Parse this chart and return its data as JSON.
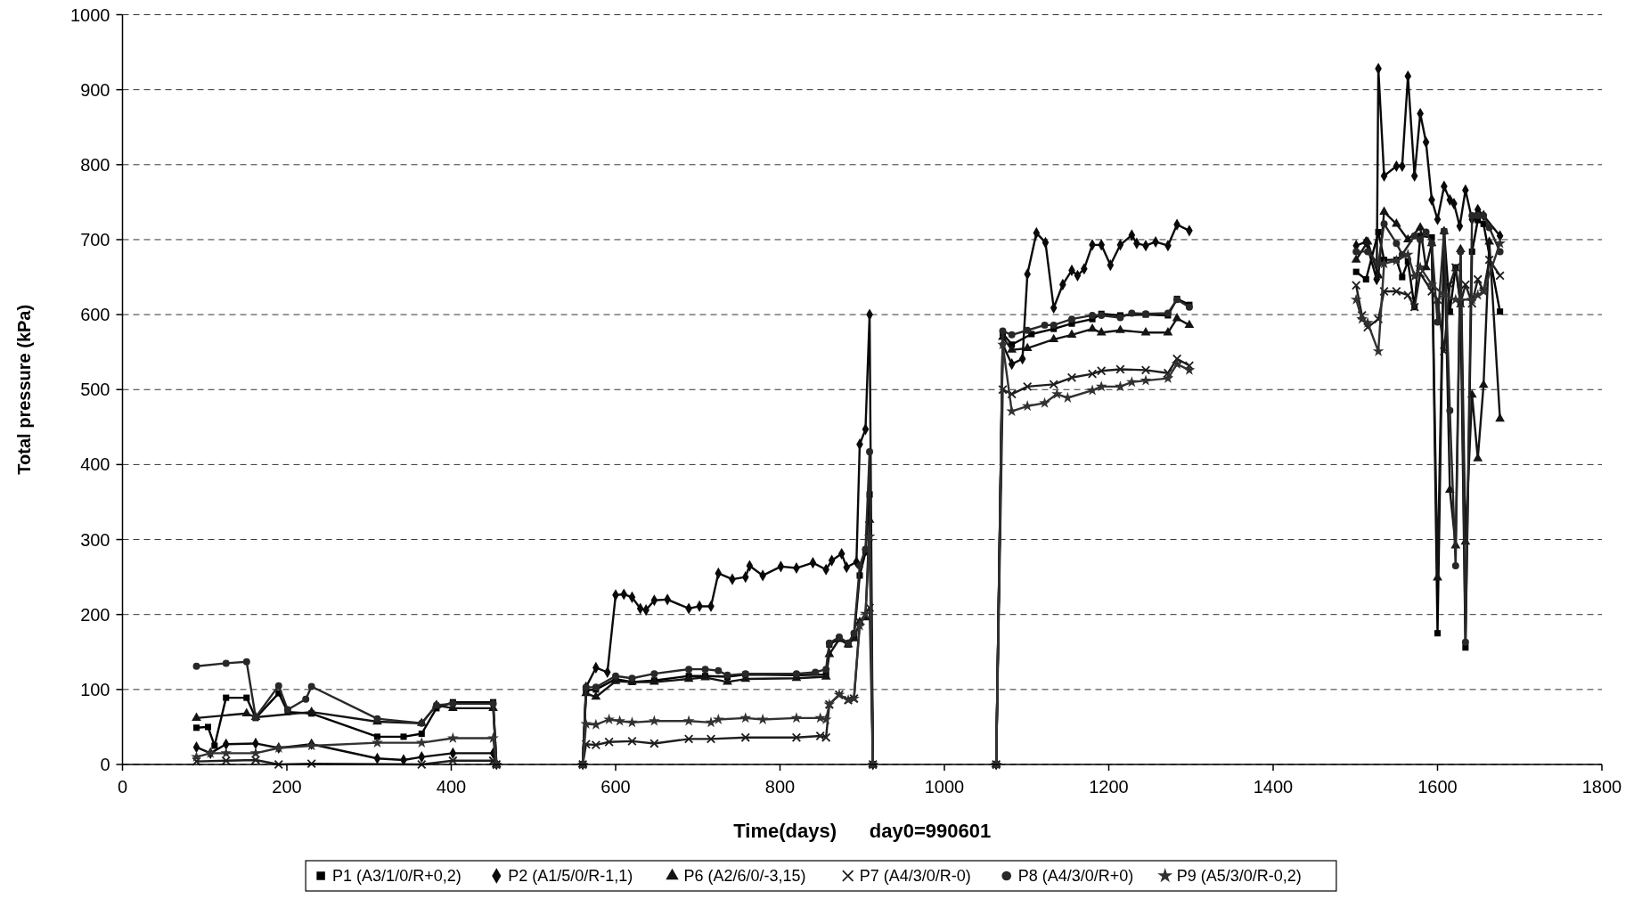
{
  "chart_data": {
    "type": "line",
    "xlabel": "Time(days)      day0=990601",
    "ylabel": "Total pressure (kPa)",
    "xlim": [
      0,
      1800
    ],
    "xticks": [
      0,
      200,
      400,
      600,
      800,
      1000,
      1200,
      1400,
      1600,
      1800
    ],
    "ylim": [
      0,
      1000
    ],
    "yticks": [
      0,
      100,
      200,
      300,
      400,
      500,
      600,
      700,
      800,
      900,
      1000
    ],
    "grid": "y",
    "legend": "bottom",
    "series": [
      {
        "name": "P1 (A3/1/0/R+0,2)",
        "color": "#000000",
        "marker": "square",
        "x": [
          90,
          104,
          112,
          126,
          151,
          162,
          190,
          201,
          230,
          310,
          342,
          364,
          382,
          402,
          451,
          455,
          500,
          560,
          564,
          576,
          600,
          620,
          647,
          689,
          709,
          736,
          758,
          820,
          856,
          860,
          872,
          883,
          890,
          897,
          904,
          909,
          913,
          990,
          1063,
          1071,
          1082,
          1106,
          1133,
          1155,
          1180,
          1191,
          1214,
          1245,
          1272,
          1283,
          1298,
          1400,
          1501,
          1513,
          1528,
          1535,
          1550,
          1557,
          1564,
          1572,
          1579,
          1593,
          1600,
          1608,
          1615,
          1622,
          1628,
          1634,
          1642,
          1649,
          1656,
          1676
        ],
        "values": [
          49,
          50,
          25,
          89,
          89,
          62,
          95,
          70,
          68,
          37,
          37,
          41,
          75,
          83,
          83,
          0,
          null,
          0,
          99,
          100,
          114,
          110,
          112,
          118,
          118,
          117,
          120,
          119,
          120,
          160,
          168,
          160,
          170,
          252,
          283,
          360,
          0,
          null,
          0,
          575,
          560,
          574,
          581,
          588,
          594,
          601,
          599,
          600,
          599,
          621,
          613,
          null,
          657,
          647,
          710,
          673,
          673,
          650,
          671,
          610,
          705,
          703,
          175,
          711,
          604,
          663,
          615,
          156,
          684,
          726,
          721,
          604
        ]
      },
      {
        "name": "P2 (A1/5/0/R-1,1)",
        "color": "#0a0a0a",
        "marker": "diamond",
        "x": [
          90,
          107,
          126,
          162,
          190,
          230,
          310,
          342,
          364,
          402,
          451,
          455,
          500,
          560,
          564,
          576,
          590,
          600,
          610,
          620,
          630,
          637,
          647,
          663,
          689,
          702,
          716,
          725,
          742,
          758,
          763,
          779,
          801,
          820,
          840,
          856,
          863,
          875,
          881,
          893,
          897,
          904,
          909,
          913,
          990,
          1063,
          1071,
          1082,
          1095,
          1101,
          1112,
          1123,
          1133,
          1144,
          1155,
          1162,
          1170,
          1180,
          1191,
          1202,
          1214,
          1228,
          1234,
          1245,
          1257,
          1272,
          1283,
          1298,
          1400,
          1501,
          1513,
          1526,
          1528,
          1535,
          1550,
          1557,
          1564,
          1572,
          1579,
          1586,
          1593,
          1600,
          1608,
          1615,
          1620,
          1627,
          1634,
          1642,
          1649,
          1656,
          1676
        ],
        "values": [
          23,
          15,
          27,
          28,
          22,
          27,
          8,
          6,
          10,
          15,
          15,
          0,
          null,
          0,
          103,
          129,
          123,
          226,
          227,
          223,
          208,
          206,
          219,
          220,
          208,
          211,
          211,
          255,
          247,
          250,
          265,
          252,
          264,
          262,
          269,
          260,
          272,
          281,
          263,
          270,
          427,
          447,
          600,
          0,
          null,
          0,
          560,
          534,
          541,
          654,
          709,
          696,
          609,
          640,
          659,
          652,
          661,
          693,
          693,
          666,
          693,
          706,
          695,
          692,
          697,
          692,
          720,
          712,
          null,
          692,
          697,
          647,
          928,
          785,
          798,
          798,
          918,
          785,
          868,
          830,
          753,
          727,
          771,
          753,
          748,
          718,
          766,
          727,
          740,
          732,
          705
        ]
      },
      {
        "name": "P6 (A2/6/0/-3,15)",
        "color": "#141414",
        "marker": "triangle",
        "x": [
          90,
          151,
          162,
          230,
          310,
          364,
          382,
          402,
          451,
          455,
          500,
          560,
          564,
          576,
          600,
          620,
          647,
          689,
          709,
          736,
          758,
          820,
          856,
          860,
          872,
          883,
          890,
          897,
          904,
          909,
          913,
          990,
          1063,
          1071,
          1082,
          1101,
          1133,
          1155,
          1180,
          1191,
          1214,
          1245,
          1272,
          1283,
          1298,
          1400,
          1501,
          1515,
          1528,
          1535,
          1550,
          1564,
          1579,
          1586,
          1593,
          1600,
          1608,
          1615,
          1622,
          1628,
          1634,
          1642,
          1649,
          1656,
          1663,
          1676
        ],
        "values": [
          62,
          68,
          63,
          70,
          57,
          55,
          79,
          75,
          75,
          0,
          null,
          0,
          95,
          90,
          111,
          110,
          110,
          114,
          116,
          110,
          114,
          115,
          117,
          147,
          167,
          160,
          168,
          190,
          196,
          326,
          0,
          null,
          0,
          570,
          553,
          555,
          567,
          573,
          581,
          576,
          579,
          576,
          576,
          595,
          586,
          null,
          673,
          697,
          652,
          737,
          721,
          700,
          716,
          663,
          695,
          249,
          711,
          366,
          292,
          687,
          297,
          493,
          408,
          506,
          697,
          461
        ]
      },
      {
        "name": "P7 (A4/3/0/R-0)",
        "color": "#1e1e1e",
        "marker": "cross",
        "x": [
          90,
          126,
          162,
          190,
          230,
          364,
          402,
          451,
          455,
          500,
          560,
          564,
          576,
          592,
          620,
          647,
          689,
          716,
          758,
          820,
          849,
          856,
          860,
          872,
          883,
          890,
          897,
          909,
          913,
          990,
          1063,
          1071,
          1082,
          1101,
          1133,
          1155,
          1180,
          1191,
          1214,
          1245,
          1272,
          1283,
          1298,
          1400,
          1501,
          1508,
          1515,
          1528,
          1535,
          1550,
          1564,
          1572,
          1579,
          1593,
          1600,
          1608,
          1615,
          1622,
          1628,
          1634,
          1642,
          1649,
          1656,
          1663,
          1676
        ],
        "values": [
          4,
          5,
          6,
          0,
          1,
          0,
          5,
          5,
          0,
          null,
          0,
          27,
          26,
          30,
          31,
          28,
          34,
          34,
          36,
          36,
          38,
          36,
          80,
          93,
          86,
          88,
          190,
          209,
          0,
          null,
          0,
          500,
          494,
          504,
          507,
          516,
          521,
          525,
          527,
          526,
          522,
          541,
          532,
          null,
          639,
          599,
          583,
          594,
          631,
          631,
          626,
          610,
          655,
          631,
          620,
          551,
          640,
          663,
          615,
          640,
          615,
          647,
          631,
          673,
          652
        ]
      },
      {
        "name": "P8 (A4/3/0/R+0)",
        "color": "#282828",
        "marker": "circle",
        "x": [
          90,
          126,
          151,
          162,
          190,
          201,
          223,
          230,
          310,
          364,
          382,
          402,
          451,
          455,
          500,
          560,
          564,
          576,
          600,
          620,
          647,
          689,
          709,
          725,
          736,
          758,
          820,
          843,
          856,
          860,
          872,
          883,
          890,
          897,
          904,
          909,
          913,
          990,
          1063,
          1071,
          1082,
          1101,
          1122,
          1133,
          1155,
          1180,
          1191,
          1214,
          1228,
          1245,
          1272,
          1283,
          1298,
          1400,
          1501,
          1515,
          1528,
          1535,
          1550,
          1557,
          1572,
          1579,
          1586,
          1593,
          1600,
          1608,
          1615,
          1622,
          1628,
          1634,
          1642,
          1649,
          1656,
          1663,
          1676
        ],
        "values": [
          131,
          135,
          137,
          63,
          105,
          73,
          87,
          104,
          61,
          55,
          79,
          81,
          81,
          0,
          null,
          0,
          103,
          103,
          118,
          115,
          121,
          127,
          127,
          125,
          119,
          121,
          121,
          123,
          127,
          162,
          170,
          162,
          175,
          265,
          287,
          417,
          0,
          null,
          0,
          578,
          573,
          579,
          586,
          586,
          594,
          599,
          599,
          596,
          602,
          601,
          602,
          620,
          610,
          null,
          684,
          684,
          668,
          721,
          695,
          680,
          705,
          700,
          710,
          695,
          590,
          711,
          472,
          265,
          684,
          163,
          732,
          732,
          732,
          716,
          684
        ]
      },
      {
        "name": "P9 (A5/3/0/R-0,2)",
        "color": "#323232",
        "marker": "star",
        "x": [
          90,
          107,
          126,
          162,
          190,
          230,
          310,
          364,
          402,
          451,
          455,
          500,
          560,
          564,
          576,
          592,
          605,
          620,
          647,
          689,
          716,
          725,
          758,
          779,
          820,
          849,
          856,
          860,
          872,
          883,
          890,
          897,
          904,
          909,
          913,
          990,
          1063,
          1071,
          1082,
          1101,
          1122,
          1137,
          1150,
          1180,
          1191,
          1214,
          1228,
          1245,
          1272,
          1283,
          1298,
          1400,
          1501,
          1508,
          1515,
          1528,
          1535,
          1550,
          1564,
          1572,
          1579,
          1593,
          1608,
          1622,
          1642,
          1649,
          1656,
          1676
        ],
        "values": [
          10,
          15,
          15,
          15,
          22,
          25,
          29,
          29,
          35,
          35,
          0,
          null,
          0,
          54,
          53,
          60,
          58,
          56,
          58,
          58,
          56,
          60,
          62,
          60,
          62,
          62,
          60,
          80,
          93,
          86,
          88,
          185,
          201,
          304,
          0,
          null,
          0,
          560,
          471,
          478,
          482,
          494,
          489,
          499,
          504,
          504,
          510,
          512,
          515,
          534,
          526,
          null,
          620,
          594,
          589,
          551,
          668,
          672,
          680,
          651,
          663,
          640,
          626,
          620,
          620,
          626,
          631,
          695
        ]
      }
    ]
  }
}
